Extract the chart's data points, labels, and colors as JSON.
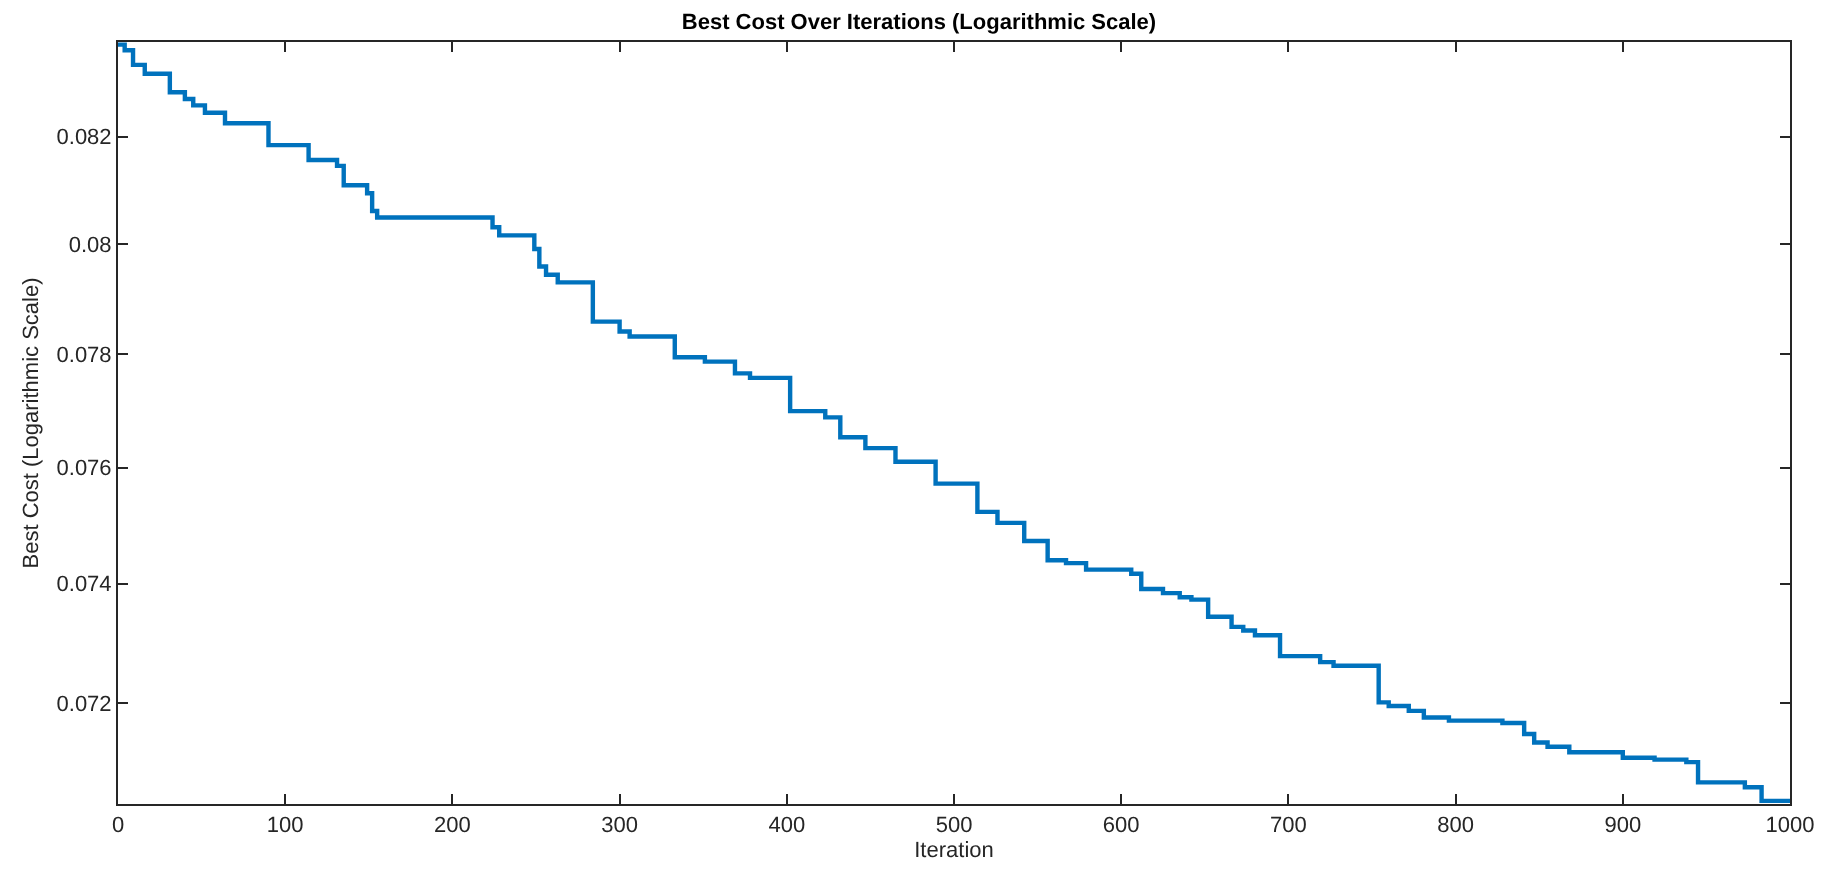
{
  "chart_data": {
    "type": "step",
    "title": "Best Cost Over Iterations (Logarithmic Scale)",
    "xlabel": "Iteration",
    "ylabel": "Best Cost (Logarithmic Scale)",
    "log": "y",
    "x": [
      0,
      4,
      9,
      16,
      31,
      40,
      45,
      52,
      64,
      90,
      114,
      131,
      135,
      149,
      152,
      155,
      224,
      228,
      249,
      252,
      256,
      263,
      284,
      300,
      306,
      333,
      351,
      369,
      378,
      402,
      423,
      432,
      447,
      465,
      489,
      514,
      526,
      542,
      556,
      567,
      579,
      606,
      612,
      625,
      635,
      642,
      652,
      666,
      673,
      680,
      695,
      719,
      727,
      754,
      760,
      772,
      781,
      796,
      828,
      841,
      847,
      855,
      868,
      900,
      919,
      938,
      945,
      973,
      983,
      1000
    ],
    "series": [
      {
        "color": "#0072bd",
        "values": [
          0.08375,
          0.08364,
          0.08336,
          0.08319,
          0.08284,
          0.08271,
          0.08259,
          0.08245,
          0.08225,
          0.08184,
          0.08156,
          0.08145,
          0.08109,
          0.08094,
          0.08061,
          0.08049,
          0.08031,
          0.08016,
          0.07991,
          0.07959,
          0.07944,
          0.0793,
          0.07859,
          0.07841,
          0.07832,
          0.07795,
          0.07787,
          0.07766,
          0.07758,
          0.07699,
          0.07688,
          0.07653,
          0.07634,
          0.0761,
          0.07572,
          0.07523,
          0.07504,
          0.07473,
          0.0744,
          0.07435,
          0.07424,
          0.07417,
          0.07391,
          0.07384,
          0.07377,
          0.07373,
          0.07344,
          0.07327,
          0.07321,
          0.07313,
          0.07278,
          0.07268,
          0.07262,
          0.07201,
          0.07195,
          0.07187,
          0.07176,
          0.07171,
          0.07167,
          0.07149,
          0.07135,
          0.07128,
          0.07119,
          0.0711,
          0.07107,
          0.07103,
          0.0707,
          0.07062,
          0.0704,
          0.0704
        ]
      }
    ],
    "xlim": [
      0,
      1000
    ],
    "xticks": [
      0,
      100,
      200,
      300,
      400,
      500,
      600,
      700,
      800,
      900,
      1000
    ],
    "ylim": [
      0.07035,
      0.0838
    ],
    "yticks": [
      0.072,
      0.074,
      0.076,
      0.078,
      0.08,
      0.082
    ],
    "marker": "none",
    "line_style": "solid"
  }
}
